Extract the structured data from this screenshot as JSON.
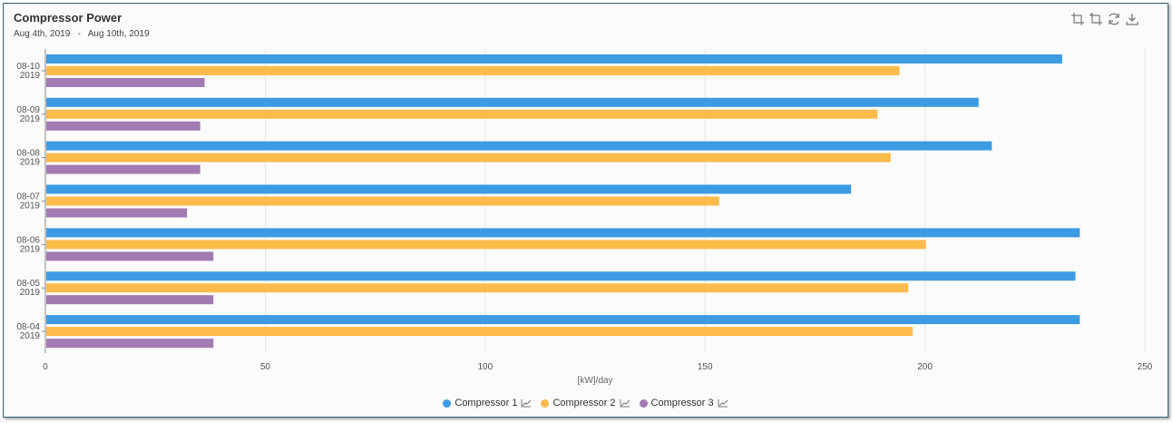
{
  "header": {
    "title": "Compressor Power",
    "date_range": "Aug 4th, 2019   -   Aug 10th, 2019"
  },
  "toolbar": {
    "icons": [
      "crop-icon",
      "crop-reset-icon",
      "refresh-icon",
      "download-icon"
    ]
  },
  "chart_data": {
    "type": "bar",
    "orientation": "horizontal",
    "categories": [
      [
        "08-10",
        "2019"
      ],
      [
        "08-09",
        "2019"
      ],
      [
        "08-08",
        "2019"
      ],
      [
        "08-07",
        "2019"
      ],
      [
        "08-06",
        "2019"
      ],
      [
        "08-05",
        "2019"
      ],
      [
        "08-04",
        "2019"
      ]
    ],
    "series": [
      {
        "name": "Compressor 1",
        "color": "#3c9be3",
        "values": [
          231,
          212,
          215,
          183,
          235,
          234,
          235
        ]
      },
      {
        "name": "Compressor 2",
        "color": "#fdbb4b",
        "values": [
          194,
          189,
          192,
          153,
          200,
          196,
          197
        ]
      },
      {
        "name": "Compressor 3",
        "color": "#a27bb2",
        "values": [
          36,
          35,
          35,
          32,
          38,
          38,
          38
        ]
      }
    ],
    "xlabel": "[kW]/day",
    "xlim": [
      0,
      250
    ],
    "xticks": [
      0,
      50,
      100,
      150,
      200,
      250
    ],
    "grid": true,
    "legend_position": "bottom-center"
  }
}
